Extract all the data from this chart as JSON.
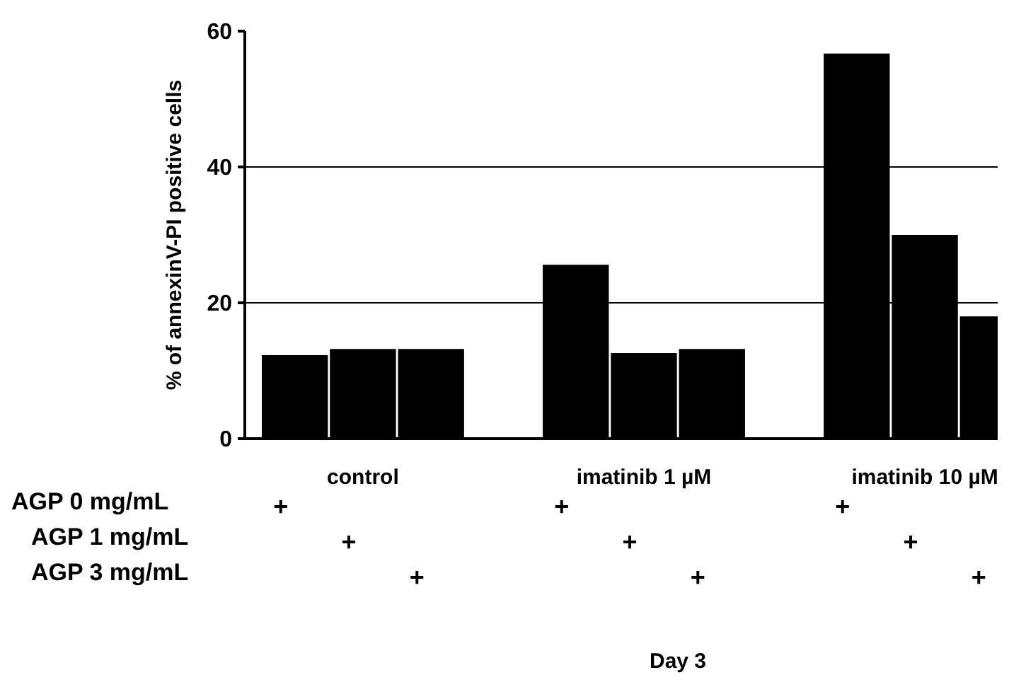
{
  "chart_data": {
    "type": "bar",
    "categories": [
      "control",
      "imatinib 1 µM",
      "imatinib 10 µM"
    ],
    "series": [
      {
        "color": "#000000",
        "values": [
          12.3,
          25.6,
          56.7
        ]
      },
      {
        "color": "#000000",
        "values": [
          13.2,
          12.6,
          30
        ]
      },
      {
        "color": "#000000",
        "values": [
          13.2,
          13.2,
          18
        ]
      }
    ],
    "ylabel": "% of annexinV-PI positive cells",
    "ylim": [
      0,
      60
    ],
    "yticks": [
      0,
      20,
      40,
      60
    ],
    "grid": "y",
    "annotations": [
      "AGP 0 mg/mL",
      "+",
      "+",
      "+",
      "AGP 1 mg/mL",
      "+",
      "+",
      "+",
      "AGP 3 mg/mL",
      "+",
      "+",
      "+",
      "Day 3"
    ]
  }
}
